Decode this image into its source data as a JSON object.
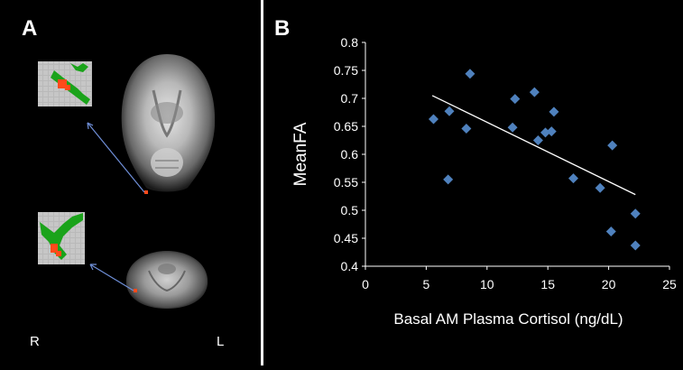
{
  "panel_a": {
    "label": "A",
    "right_label": "R",
    "left_label": "L",
    "colors": {
      "tract": "#1aa31a",
      "cluster": "#ff4a1a",
      "arrow": "#6f8fd8"
    }
  },
  "panel_b": {
    "label": "B",
    "colors": {
      "marker": "#4f81bd",
      "trend": "#ffffff",
      "axis": "#ffffff"
    }
  },
  "chart_data": {
    "type": "scatter",
    "title": "",
    "xlabel": "Basal AM Plasma Cortisol (ng/dL)",
    "ylabel": "MeanFA",
    "xlim": [
      0,
      25
    ],
    "ylim": [
      0.4,
      0.8
    ],
    "x_ticks": [
      "0",
      "5",
      "10",
      "15",
      "20",
      "25"
    ],
    "y_ticks": [
      "0.4",
      "0.45",
      "0.5",
      "0.55",
      "0.6",
      "0.65",
      "0.7",
      "0.75",
      "0.8"
    ],
    "grid": false,
    "points": [
      {
        "x": 5.6,
        "y": 0.663
      },
      {
        "x": 6.8,
        "y": 0.555
      },
      {
        "x": 6.9,
        "y": 0.677
      },
      {
        "x": 8.3,
        "y": 0.646
      },
      {
        "x": 8.6,
        "y": 0.744
      },
      {
        "x": 12.1,
        "y": 0.648
      },
      {
        "x": 12.3,
        "y": 0.699
      },
      {
        "x": 13.9,
        "y": 0.711
      },
      {
        "x": 14.2,
        "y": 0.625
      },
      {
        "x": 14.8,
        "y": 0.639
      },
      {
        "x": 15.3,
        "y": 0.641
      },
      {
        "x": 15.5,
        "y": 0.676
      },
      {
        "x": 17.1,
        "y": 0.557
      },
      {
        "x": 19.3,
        "y": 0.54
      },
      {
        "x": 20.2,
        "y": 0.462
      },
      {
        "x": 20.3,
        "y": 0.616
      },
      {
        "x": 22.2,
        "y": 0.494
      },
      {
        "x": 22.2,
        "y": 0.437
      }
    ],
    "trendline": [
      {
        "x": 5.5,
        "y": 0.705
      },
      {
        "x": 22.2,
        "y": 0.528
      }
    ]
  }
}
